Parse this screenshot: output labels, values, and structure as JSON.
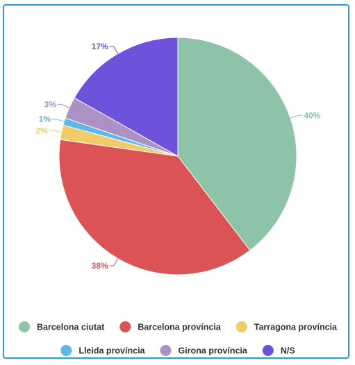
{
  "chart_data": {
    "type": "pie",
    "slices": [
      {
        "label": "Barcelona ciutat",
        "value": 40,
        "display": "40%",
        "color": "#8dc3a7"
      },
      {
        "label": "Barcelona província",
        "value": 38,
        "display": "38%",
        "color": "#dc5356"
      },
      {
        "label": "Tarragona província",
        "value": 2,
        "display": "2%",
        "color": "#f0cb69"
      },
      {
        "label": "Lleida província",
        "value": 1,
        "display": "1%",
        "color": "#5fb7e5"
      },
      {
        "label": "Girona província",
        "value": 3,
        "display": "3%",
        "color": "#ab91c5"
      },
      {
        "label": "N/S",
        "value": 17,
        "display": "17%",
        "color": "#6f52dc"
      }
    ],
    "legend_position": "bottom"
  }
}
